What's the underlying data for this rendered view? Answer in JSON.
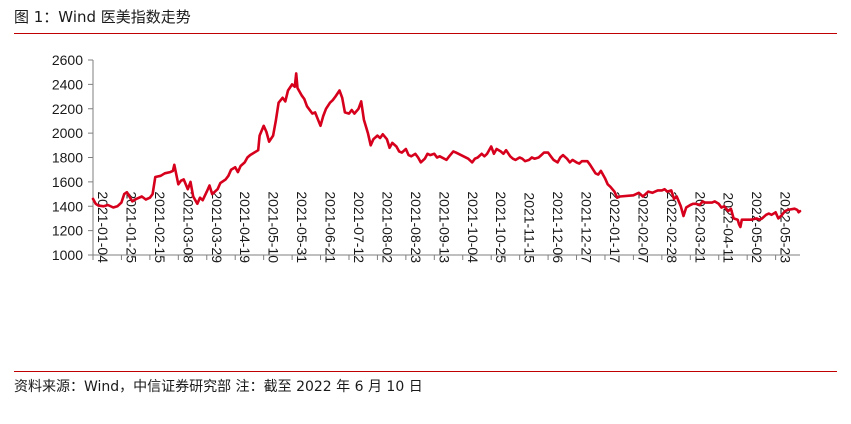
{
  "figure": {
    "title": "图 1：Wind 医美指数走势",
    "source_label": "资料来源：Wind，中信证券研究部",
    "note": "注：截至 2022 年 6 月 10 日"
  },
  "colors": {
    "rule": "#c00000",
    "series": "#d6001c",
    "axis": "#7f7f7f"
  },
  "chart_data": {
    "type": "line",
    "title": "",
    "xlabel": "",
    "ylabel": "",
    "ylim": [
      1000,
      2600
    ],
    "yticks": [
      1000,
      1200,
      1400,
      1600,
      1800,
      2000,
      2200,
      2400,
      2600
    ],
    "xticks": [
      "2021-01-04",
      "2021-01-25",
      "2021-02-15",
      "2021-03-08",
      "2021-03-29",
      "2021-04-19",
      "2021-05-10",
      "2021-05-31",
      "2021-06-21",
      "2021-07-12",
      "2021-08-02",
      "2021-08-23",
      "2021-09-13",
      "2021-10-04",
      "2021-10-25",
      "2021-11-15",
      "2021-12-06",
      "2021-12-27",
      "2022-01-17",
      "2022-02-07",
      "2022-02-28",
      "2022-03-21",
      "2022-04-11",
      "2022-05-02",
      "2022-05-23"
    ],
    "xrange": [
      "2021-01-04",
      "2022-06-10"
    ],
    "grid": false,
    "legend": "none",
    "series": [
      {
        "points": [
          [
            "2021-01-04",
            1460
          ],
          [
            "2021-01-06",
            1420
          ],
          [
            "2021-01-08",
            1405
          ],
          [
            "2021-01-12",
            1400
          ],
          [
            "2021-01-15",
            1410
          ],
          [
            "2021-01-19",
            1390
          ],
          [
            "2021-01-22",
            1400
          ],
          [
            "2021-01-25",
            1430
          ],
          [
            "2021-01-27",
            1500
          ],
          [
            "2021-01-29",
            1515
          ],
          [
            "2021-02-02",
            1440
          ],
          [
            "2021-02-05",
            1460
          ],
          [
            "2021-02-09",
            1480
          ],
          [
            "2021-02-12",
            1455
          ],
          [
            "2021-02-15",
            1470
          ],
          [
            "2021-02-17",
            1500
          ],
          [
            "2021-02-19",
            1640
          ],
          [
            "2021-02-23",
            1650
          ],
          [
            "2021-02-26",
            1670
          ],
          [
            "2021-03-02",
            1680
          ],
          [
            "2021-03-04",
            1690
          ],
          [
            "2021-03-05",
            1740
          ],
          [
            "2021-03-08",
            1580
          ],
          [
            "2021-03-10",
            1610
          ],
          [
            "2021-03-12",
            1620
          ],
          [
            "2021-03-15",
            1540
          ],
          [
            "2021-03-17",
            1600
          ],
          [
            "2021-03-19",
            1480
          ],
          [
            "2021-03-22",
            1420
          ],
          [
            "2021-03-24",
            1470
          ],
          [
            "2021-03-26",
            1450
          ],
          [
            "2021-03-29",
            1520
          ],
          [
            "2021-03-31",
            1570
          ],
          [
            "2021-04-02",
            1500
          ],
          [
            "2021-04-06",
            1540
          ],
          [
            "2021-04-08",
            1590
          ],
          [
            "2021-04-12",
            1620
          ],
          [
            "2021-04-14",
            1650
          ],
          [
            "2021-04-16",
            1700
          ],
          [
            "2021-04-19",
            1720
          ],
          [
            "2021-04-21",
            1680
          ],
          [
            "2021-04-23",
            1730
          ],
          [
            "2021-04-26",
            1760
          ],
          [
            "2021-04-28",
            1800
          ],
          [
            "2021-04-30",
            1820
          ],
          [
            "2021-05-06",
            1860
          ],
          [
            "2021-05-07",
            1980
          ],
          [
            "2021-05-10",
            2060
          ],
          [
            "2021-05-12",
            2010
          ],
          [
            "2021-05-14",
            1930
          ],
          [
            "2021-05-17",
            1980
          ],
          [
            "2021-05-19",
            2100
          ],
          [
            "2021-05-21",
            2250
          ],
          [
            "2021-05-24",
            2290
          ],
          [
            "2021-05-26",
            2260
          ],
          [
            "2021-05-28",
            2350
          ],
          [
            "2021-05-31",
            2400
          ],
          [
            "2021-06-02",
            2380
          ],
          [
            "2021-06-03",
            2490
          ],
          [
            "2021-06-04",
            2370
          ],
          [
            "2021-06-07",
            2310
          ],
          [
            "2021-06-09",
            2280
          ],
          [
            "2021-06-11",
            2220
          ],
          [
            "2021-06-15",
            2160
          ],
          [
            "2021-06-17",
            2170
          ],
          [
            "2021-06-21",
            2060
          ],
          [
            "2021-06-23",
            2140
          ],
          [
            "2021-06-25",
            2200
          ],
          [
            "2021-06-28",
            2250
          ],
          [
            "2021-06-30",
            2270
          ],
          [
            "2021-07-02",
            2300
          ],
          [
            "2021-07-05",
            2350
          ],
          [
            "2021-07-07",
            2290
          ],
          [
            "2021-07-09",
            2170
          ],
          [
            "2021-07-12",
            2160
          ],
          [
            "2021-07-14",
            2190
          ],
          [
            "2021-07-16",
            2160
          ],
          [
            "2021-07-19",
            2200
          ],
          [
            "2021-07-21",
            2260
          ],
          [
            "2021-07-23",
            2110
          ],
          [
            "2021-07-26",
            2000
          ],
          [
            "2021-07-28",
            1900
          ],
          [
            "2021-07-30",
            1950
          ],
          [
            "2021-08-02",
            1980
          ],
          [
            "2021-08-04",
            1960
          ],
          [
            "2021-08-06",
            1990
          ],
          [
            "2021-08-09",
            1950
          ],
          [
            "2021-08-11",
            1880
          ],
          [
            "2021-08-13",
            1920
          ],
          [
            "2021-08-16",
            1890
          ],
          [
            "2021-08-18",
            1850
          ],
          [
            "2021-08-20",
            1840
          ],
          [
            "2021-08-23",
            1870
          ],
          [
            "2021-08-25",
            1820
          ],
          [
            "2021-08-27",
            1810
          ],
          [
            "2021-08-30",
            1830
          ],
          [
            "2021-09-01",
            1800
          ],
          [
            "2021-09-03",
            1760
          ],
          [
            "2021-09-06",
            1790
          ],
          [
            "2021-09-08",
            1830
          ],
          [
            "2021-09-10",
            1820
          ],
          [
            "2021-09-13",
            1830
          ],
          [
            "2021-09-15",
            1800
          ],
          [
            "2021-09-17",
            1810
          ],
          [
            "2021-09-22",
            1780
          ],
          [
            "2021-09-24",
            1810
          ],
          [
            "2021-09-27",
            1850
          ],
          [
            "2021-09-29",
            1840
          ],
          [
            "2021-10-08",
            1790
          ],
          [
            "2021-10-11",
            1760
          ],
          [
            "2021-10-13",
            1790
          ],
          [
            "2021-10-15",
            1800
          ],
          [
            "2021-10-18",
            1830
          ],
          [
            "2021-10-20",
            1810
          ],
          [
            "2021-10-22",
            1830
          ],
          [
            "2021-10-25",
            1890
          ],
          [
            "2021-10-27",
            1830
          ],
          [
            "2021-10-29",
            1870
          ],
          [
            "2021-11-01",
            1850
          ],
          [
            "2021-11-03",
            1830
          ],
          [
            "2021-11-05",
            1860
          ],
          [
            "2021-11-08",
            1810
          ],
          [
            "2021-11-10",
            1790
          ],
          [
            "2021-11-12",
            1780
          ],
          [
            "2021-11-15",
            1800
          ],
          [
            "2021-11-17",
            1790
          ],
          [
            "2021-11-19",
            1770
          ],
          [
            "2021-11-22",
            1780
          ],
          [
            "2021-11-24",
            1800
          ],
          [
            "2021-11-26",
            1790
          ],
          [
            "2021-11-29",
            1800
          ],
          [
            "2021-12-01",
            1820
          ],
          [
            "2021-12-03",
            1840
          ],
          [
            "2021-12-06",
            1840
          ],
          [
            "2021-12-08",
            1810
          ],
          [
            "2021-12-10",
            1780
          ],
          [
            "2021-12-13",
            1760
          ],
          [
            "2021-12-15",
            1800
          ],
          [
            "2021-12-17",
            1820
          ],
          [
            "2021-12-20",
            1790
          ],
          [
            "2021-12-22",
            1760
          ],
          [
            "2021-12-24",
            1780
          ],
          [
            "2021-12-27",
            1760
          ],
          [
            "2021-12-29",
            1750
          ],
          [
            "2021-12-31",
            1770
          ],
          [
            "2022-01-04",
            1770
          ],
          [
            "2022-01-06",
            1740
          ],
          [
            "2022-01-10",
            1670
          ],
          [
            "2022-01-12",
            1660
          ],
          [
            "2022-01-14",
            1690
          ],
          [
            "2022-01-17",
            1630
          ],
          [
            "2022-01-19",
            1580
          ],
          [
            "2022-01-21",
            1560
          ],
          [
            "2022-01-24",
            1520
          ],
          [
            "2022-01-26",
            1470
          ],
          [
            "2022-01-28",
            1480
          ],
          [
            "2022-02-07",
            1490
          ],
          [
            "2022-02-09",
            1500
          ],
          [
            "2022-02-11",
            1510
          ],
          [
            "2022-02-14",
            1480
          ],
          [
            "2022-02-16",
            1500
          ],
          [
            "2022-02-18",
            1520
          ],
          [
            "2022-02-21",
            1510
          ],
          [
            "2022-02-23",
            1520
          ],
          [
            "2022-02-25",
            1530
          ],
          [
            "2022-02-28",
            1530
          ],
          [
            "2022-03-02",
            1540
          ],
          [
            "2022-03-04",
            1520
          ],
          [
            "2022-03-07",
            1530
          ],
          [
            "2022-03-09",
            1460
          ],
          [
            "2022-03-11",
            1480
          ],
          [
            "2022-03-14",
            1400
          ],
          [
            "2022-03-16",
            1320
          ],
          [
            "2022-03-18",
            1390
          ],
          [
            "2022-03-21",
            1410
          ],
          [
            "2022-03-23",
            1420
          ],
          [
            "2022-03-25",
            1420
          ],
          [
            "2022-03-28",
            1410
          ],
          [
            "2022-03-30",
            1440
          ],
          [
            "2022-04-01",
            1430
          ],
          [
            "2022-04-06",
            1430
          ],
          [
            "2022-04-08",
            1440
          ],
          [
            "2022-04-11",
            1420
          ],
          [
            "2022-04-13",
            1390
          ],
          [
            "2022-04-15",
            1400
          ],
          [
            "2022-04-18",
            1360
          ],
          [
            "2022-04-20",
            1380
          ],
          [
            "2022-04-22",
            1300
          ],
          [
            "2022-04-25",
            1290
          ],
          [
            "2022-04-26",
            1250
          ],
          [
            "2022-04-27",
            1230
          ],
          [
            "2022-04-28",
            1290
          ],
          [
            "2022-05-05",
            1290
          ],
          [
            "2022-05-09",
            1300
          ],
          [
            "2022-05-11",
            1290
          ],
          [
            "2022-05-13",
            1300
          ],
          [
            "2022-05-16",
            1330
          ],
          [
            "2022-05-18",
            1340
          ],
          [
            "2022-05-20",
            1330
          ],
          [
            "2022-05-23",
            1350
          ],
          [
            "2022-05-25",
            1300
          ],
          [
            "2022-05-27",
            1320
          ],
          [
            "2022-05-30",
            1360
          ],
          [
            "2022-06-01",
            1370
          ],
          [
            "2022-06-06",
            1380
          ],
          [
            "2022-06-08",
            1370
          ],
          [
            "2022-06-09",
            1350
          ],
          [
            "2022-06-10",
            1360
          ]
        ]
      }
    ]
  }
}
